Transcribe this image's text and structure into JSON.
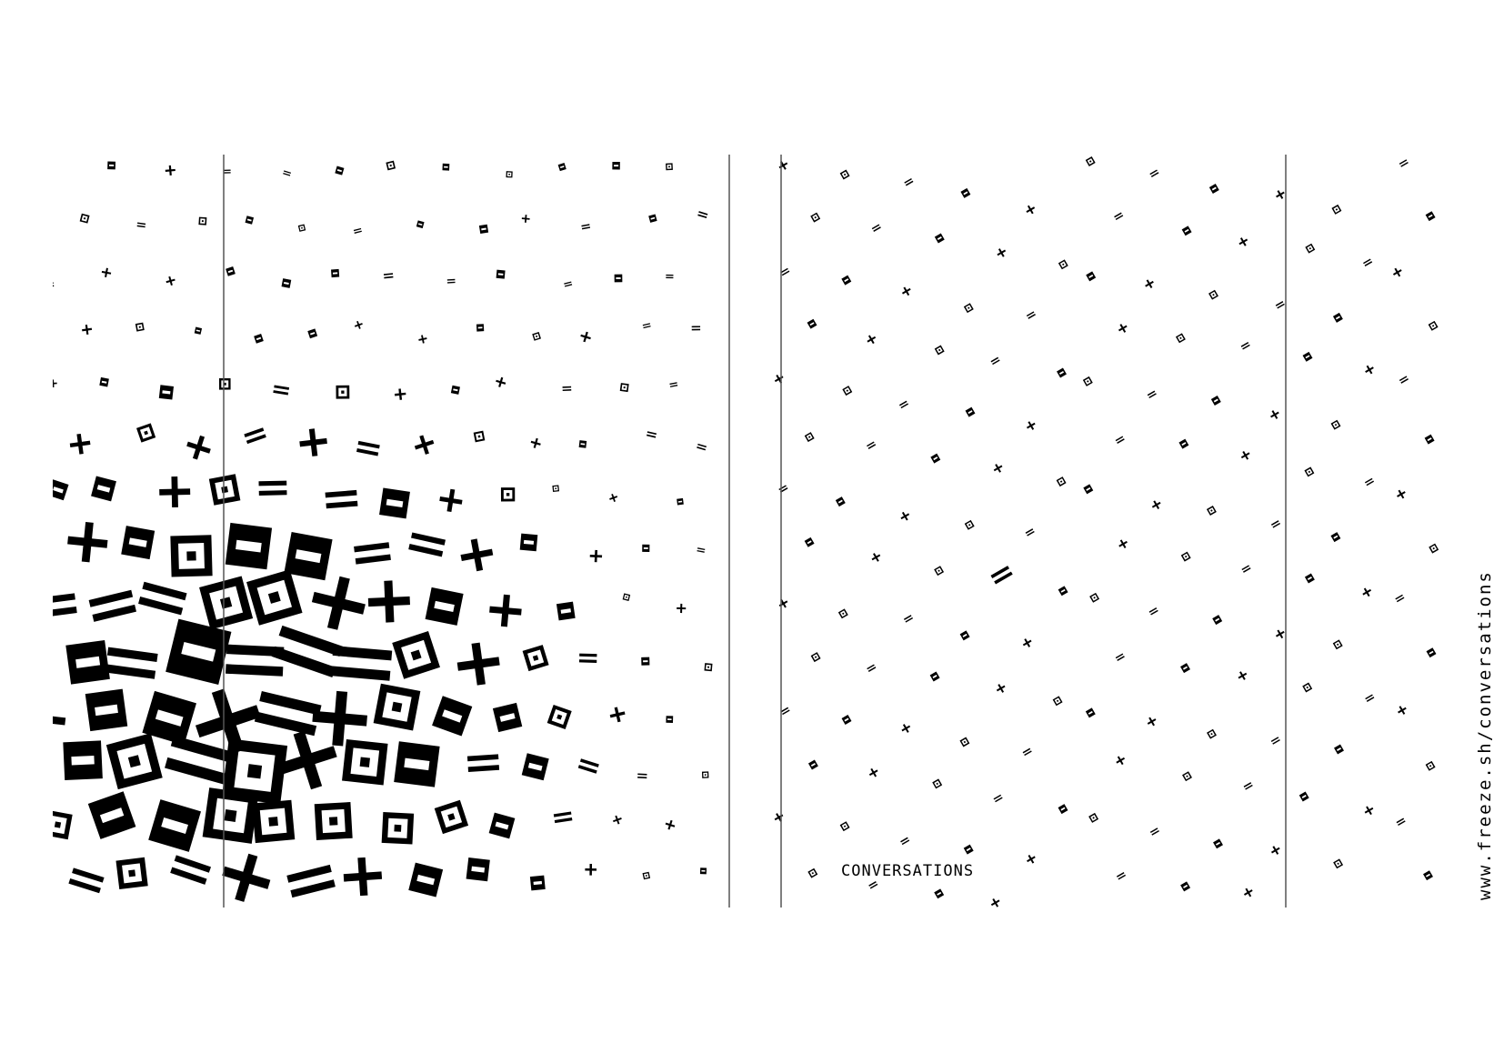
{
  "caption": "CONVERSATIONS",
  "url": "www.freeze.sh/conversations",
  "colors": {
    "ink": "#000000",
    "paper": "#ffffff",
    "rule": "#555555"
  },
  "glyph_types": [
    "plus-glyph",
    "square-glyph",
    "equals-glyph",
    "bar-square-glyph"
  ]
}
